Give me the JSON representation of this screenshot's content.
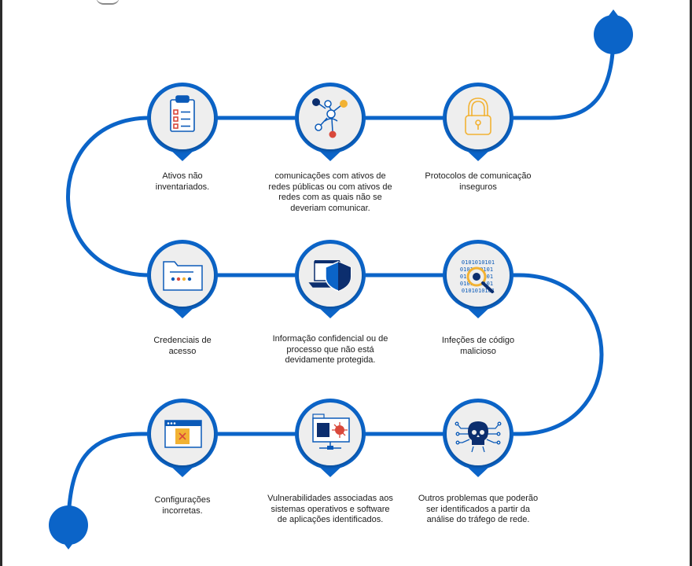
{
  "colors": {
    "path": "#0b64c8",
    "node_fill": "#eeeeee",
    "icon": "#0b5ab8",
    "accent_yellow": "#f2b233",
    "accent_red": "#d9483b",
    "icon_dark": "#0c2e6e"
  },
  "steps": [
    {
      "icon": "clipboard-checklist-icon",
      "label": "Ativos não inventariados."
    },
    {
      "icon": "network-nodes-icon",
      "label": "comunicações com ativos de redes públicas ou com ativos de redes com as quais não se deveriam comunicar."
    },
    {
      "icon": "lock-icon",
      "label": "Protocolos de comunicação inseguros"
    },
    {
      "icon": "folder-password-icon",
      "label": "Credenciais de acesso"
    },
    {
      "icon": "laptop-shield-icon",
      "label": "Informação confidencial ou de processo que não está devidamente protegida."
    },
    {
      "icon": "binary-bug-magnifier-icon",
      "label": "Infeções de código malicioso",
      "binary": "0101010101"
    },
    {
      "icon": "browser-window-error-icon",
      "label": "Configurações incorretas."
    },
    {
      "icon": "virus-monitor-icon",
      "label": "Vulnerabilidades associadas aos sistemas operativos e software de aplicações identificados."
    },
    {
      "icon": "skull-circuit-icon",
      "label": "Outros problemas que poderão ser identificados a partir da análise do tráfego de rede."
    }
  ]
}
